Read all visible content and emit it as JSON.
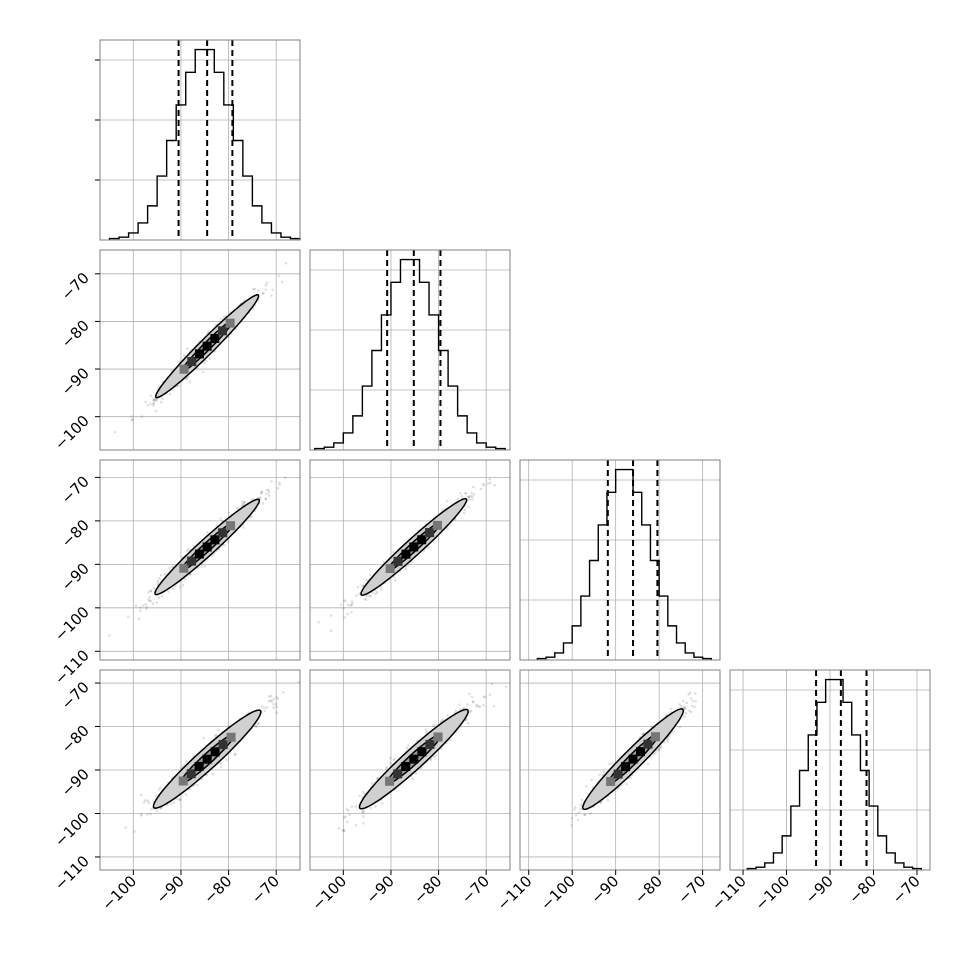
{
  "chart_data": {
    "type": "corner",
    "ndim": 4,
    "grid": true,
    "histograms": [
      {
        "bin_edges": [
          -105,
          -103,
          -101,
          -99,
          -97,
          -95,
          -93,
          -91,
          -89,
          -87,
          -85,
          -83,
          -81,
          -79,
          -77,
          -75,
          -73,
          -71,
          -69,
          -67,
          -65
        ],
        "counts": [
          1,
          2,
          5,
          12,
          24,
          45,
          70,
          95,
          118,
          134,
          134,
          118,
          95,
          70,
          45,
          24,
          12,
          5,
          2,
          1
        ],
        "quantiles": [
          -90.5,
          -84.5,
          -79.2
        ],
        "range": [
          -107,
          -65
        ]
      },
      {
        "bin_edges": [
          -106,
          -104,
          -102,
          -100,
          -98,
          -96,
          -94,
          -92,
          -90,
          -88,
          -86,
          -84,
          -82,
          -80,
          -78,
          -76,
          -74,
          -72,
          -70,
          -68,
          -66
        ],
        "counts": [
          1,
          2,
          5,
          12,
          24,
          45,
          70,
          95,
          118,
          134,
          134,
          118,
          95,
          70,
          45,
          24,
          12,
          5,
          2,
          1
        ],
        "quantiles": [
          -90.8,
          -85.2,
          -79.6
        ],
        "range": [
          -107,
          -65
        ]
      },
      {
        "bin_edges": [
          -108,
          -106,
          -104,
          -102,
          -100,
          -98,
          -96,
          -94,
          -92,
          -90,
          -88,
          -86,
          -84,
          -82,
          -80,
          -78,
          -76,
          -74,
          -72,
          -70,
          -68
        ],
        "counts": [
          1,
          2,
          5,
          12,
          24,
          45,
          70,
          95,
          118,
          134,
          134,
          118,
          95,
          70,
          45,
          24,
          12,
          5,
          2,
          1
        ],
        "quantiles": [
          -91.8,
          -86.0,
          -80.4
        ],
        "range": [
          -112,
          -66
        ]
      },
      {
        "bin_edges": [
          -109,
          -107,
          -105,
          -103,
          -101,
          -99,
          -97,
          -95,
          -93,
          -91,
          -89,
          -87,
          -85,
          -83,
          -81,
          -79,
          -77,
          -75,
          -73,
          -71,
          -69
        ],
        "counts": [
          1,
          2,
          5,
          12,
          24,
          45,
          70,
          95,
          118,
          134,
          134,
          118,
          95,
          70,
          45,
          24,
          12,
          5,
          2,
          1
        ],
        "quantiles": [
          -93.2,
          -87.5,
          -81.6
        ],
        "range": [
          -113,
          -67
        ]
      }
    ],
    "axes": [
      {
        "range": [
          -107,
          -65
        ],
        "ticks": [
          -100,
          -90,
          -80,
          -70
        ],
        "tick_labels": [
          "−100",
          "−90",
          "−80",
          "−70"
        ]
      },
      {
        "range": [
          -107,
          -65
        ],
        "ticks": [
          -100,
          -90,
          -80,
          -70
        ],
        "tick_labels": [
          "−100",
          "−90",
          "−80",
          "−70"
        ]
      },
      {
        "range": [
          -112,
          -66
        ],
        "ticks": [
          -110,
          -100,
          -90,
          -80,
          -70
        ],
        "tick_labels": [
          "−110",
          "−100",
          "−90",
          "−80",
          "−70"
        ]
      },
      {
        "range": [
          -113,
          -67
        ],
        "ticks": [
          -110,
          -100,
          -90,
          -80,
          -70
        ],
        "tick_labels": [
          "−110",
          "−100",
          "−90",
          "−80",
          "−70"
        ]
      }
    ],
    "pairs": [
      {
        "x_dim": 0,
        "y_dim": 1,
        "center": [
          -84.5,
          -85.2
        ],
        "sd_major": 7.6,
        "sd_minor": 0.8,
        "angle_deg": 45
      },
      {
        "x_dim": 0,
        "y_dim": 2,
        "center": [
          -84.5,
          -86.0
        ],
        "sd_major": 7.7,
        "sd_minor": 0.9,
        "angle_deg": 45
      },
      {
        "x_dim": 1,
        "y_dim": 2,
        "center": [
          -85.2,
          -86.0
        ],
        "sd_major": 7.8,
        "sd_minor": 0.9,
        "angle_deg": 45
      },
      {
        "x_dim": 0,
        "y_dim": 3,
        "center": [
          -84.5,
          -87.5
        ],
        "sd_major": 7.9,
        "sd_minor": 1.1,
        "angle_deg": 45
      },
      {
        "x_dim": 1,
        "y_dim": 3,
        "center": [
          -85.2,
          -87.5
        ],
        "sd_major": 8.0,
        "sd_minor": 1.1,
        "angle_deg": 45
      },
      {
        "x_dim": 2,
        "y_dim": 3,
        "center": [
          -86.0,
          -87.5
        ],
        "sd_major": 8.1,
        "sd_minor": 1.1,
        "angle_deg": 45
      }
    ],
    "contour_levels_sigma": [
      1.0,
      2.0
    ],
    "colors": {
      "line": "#000000",
      "grid": "#b0b0b0",
      "frame": "#808080",
      "fill": "#d0d0d0"
    }
  }
}
